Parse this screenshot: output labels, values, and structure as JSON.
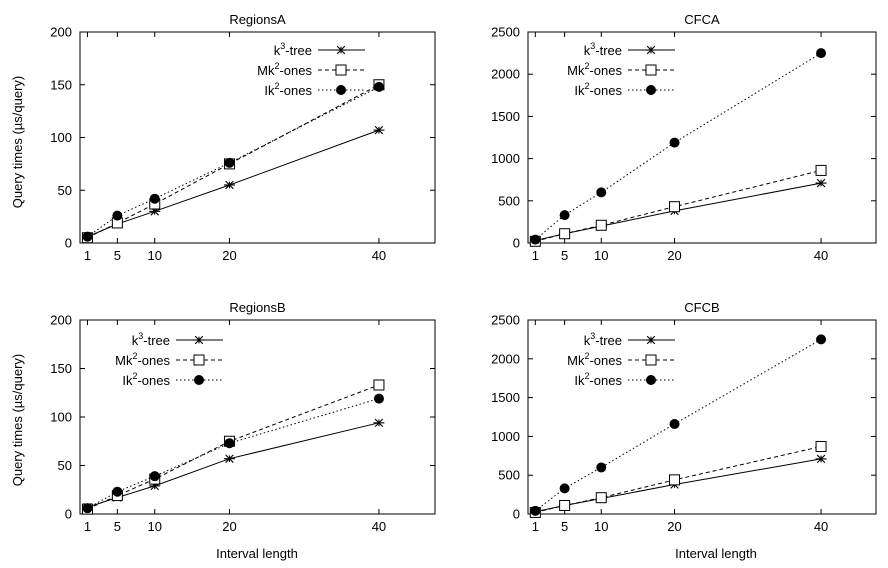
{
  "legend_labels": {
    "k3": [
      "k",
      "3",
      "-tree"
    ],
    "mk2": [
      "Mk",
      "2",
      "-ones"
    ],
    "ik2": [
      "Ik",
      "2",
      "-ones"
    ]
  },
  "y_axis_label": "Query times (µs/query)",
  "x_axis_label": "Interval length",
  "colors": {
    "line": "#000000",
    "background": "#ffffff"
  },
  "chart_data": [
    {
      "type": "line",
      "title": "RegionsA",
      "ylabel": "Query times (µs/query)",
      "xlabel": "",
      "xlim": [
        0,
        47.5
      ],
      "ylim": [
        0,
        200
      ],
      "x_ticks": [
        1,
        5,
        10,
        20,
        40
      ],
      "y_ticks": [
        0,
        50,
        100,
        150,
        200
      ],
      "legend_position": "top-right",
      "x": [
        1,
        5,
        10,
        20,
        40
      ],
      "series": [
        {
          "key": "k3",
          "name": "k3-tree",
          "marker": "asterisk",
          "dash": "solid",
          "values": [
            6,
            18,
            30,
            55,
            107
          ]
        },
        {
          "key": "mk2",
          "name": "Mk2-ones",
          "marker": "open-square",
          "dash": "dashed",
          "values": [
            5,
            19,
            37,
            75,
            150
          ]
        },
        {
          "key": "ik2",
          "name": "Ik2-ones",
          "marker": "filled-circle",
          "dash": "dotted",
          "values": [
            6,
            26,
            42,
            76,
            148
          ]
        }
      ]
    },
    {
      "type": "line",
      "title": "CFCA",
      "ylabel": "",
      "xlabel": "",
      "xlim": [
        0,
        47.5
      ],
      "ylim": [
        0,
        2500
      ],
      "x_ticks": [
        1,
        5,
        10,
        20,
        40
      ],
      "y_ticks": [
        0,
        500,
        1000,
        1500,
        2000,
        2500
      ],
      "legend_position": "top-left",
      "x": [
        1,
        5,
        10,
        20,
        40
      ],
      "series": [
        {
          "key": "k3",
          "name": "k3-tree",
          "marker": "asterisk",
          "dash": "solid",
          "values": [
            30,
            110,
            200,
            380,
            710
          ]
        },
        {
          "key": "mk2",
          "name": "Mk2-ones",
          "marker": "open-square",
          "dash": "dashed",
          "values": [
            20,
            110,
            210,
            430,
            860
          ]
        },
        {
          "key": "ik2",
          "name": "Ik2-ones",
          "marker": "filled-circle",
          "dash": "dotted",
          "values": [
            40,
            330,
            600,
            1190,
            2250
          ]
        }
      ]
    },
    {
      "type": "line",
      "title": "RegionsB",
      "ylabel": "Query times (µs/query)",
      "xlabel": "Interval length",
      "xlim": [
        0,
        47.5
      ],
      "ylim": [
        0,
        200
      ],
      "x_ticks": [
        1,
        5,
        10,
        20,
        40
      ],
      "y_ticks": [
        0,
        50,
        100,
        150,
        200
      ],
      "legend_position": "top-left",
      "x": [
        1,
        5,
        10,
        20,
        40
      ],
      "series": [
        {
          "key": "k3",
          "name": "k3-tree",
          "marker": "asterisk",
          "dash": "solid",
          "values": [
            7,
            17,
            29,
            57,
            94
          ]
        },
        {
          "key": "mk2",
          "name": "Mk2-ones",
          "marker": "open-square",
          "dash": "dashed",
          "values": [
            5,
            19,
            36,
            75,
            133
          ]
        },
        {
          "key": "ik2",
          "name": "Ik2-ones",
          "marker": "filled-circle",
          "dash": "dotted",
          "values": [
            6,
            23,
            39,
            73,
            119
          ]
        }
      ]
    },
    {
      "type": "line",
      "title": "CFCB",
      "ylabel": "",
      "xlabel": "Interval length",
      "xlim": [
        0,
        47.5
      ],
      "ylim": [
        0,
        2500
      ],
      "x_ticks": [
        1,
        5,
        10,
        20,
        40
      ],
      "y_ticks": [
        0,
        500,
        1000,
        1500,
        2000,
        2500
      ],
      "legend_position": "top-left",
      "x": [
        1,
        5,
        10,
        20,
        40
      ],
      "series": [
        {
          "key": "k3",
          "name": "k3-tree",
          "marker": "asterisk",
          "dash": "solid",
          "values": [
            30,
            110,
            200,
            380,
            710
          ]
        },
        {
          "key": "mk2",
          "name": "Mk2-ones",
          "marker": "open-square",
          "dash": "dashed",
          "values": [
            20,
            110,
            210,
            440,
            870
          ]
        },
        {
          "key": "ik2",
          "name": "Ik2-ones",
          "marker": "filled-circle",
          "dash": "dotted",
          "values": [
            40,
            330,
            600,
            1160,
            2250
          ]
        }
      ]
    }
  ]
}
